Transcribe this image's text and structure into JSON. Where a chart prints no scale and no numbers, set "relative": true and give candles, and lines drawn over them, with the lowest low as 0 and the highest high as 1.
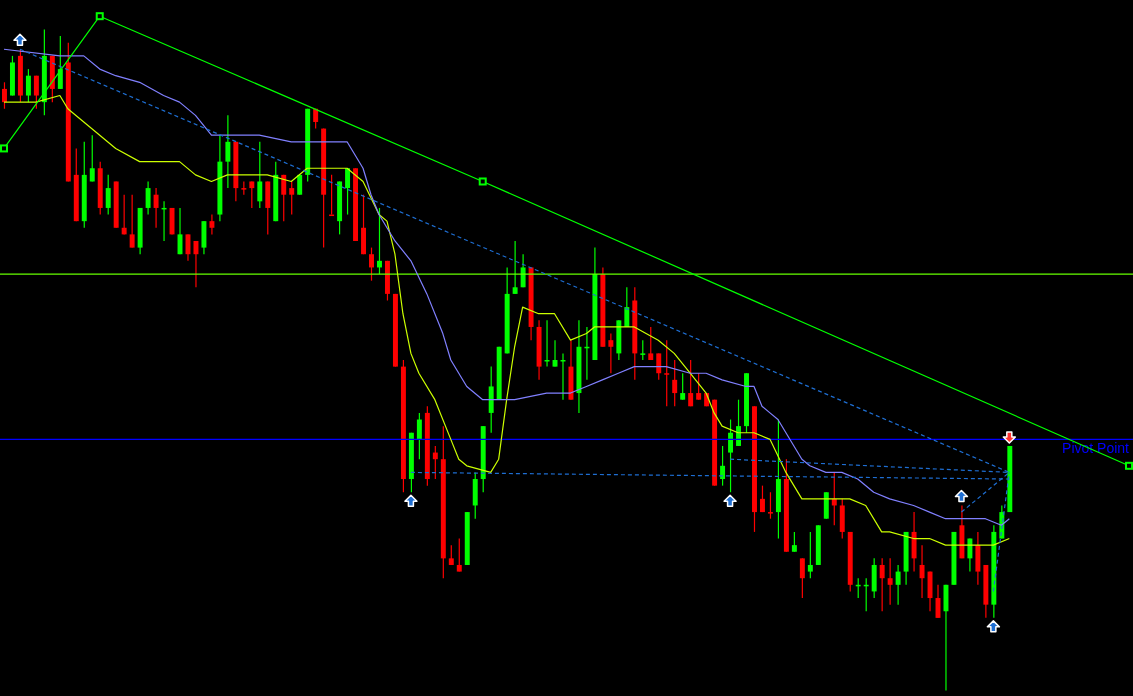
{
  "chart_data": {
    "type": "candlestick",
    "relative": true,
    "categories": [
      null,
      null,
      null,
      null,
      null,
      null,
      null,
      null,
      null,
      null,
      null,
      null,
      null,
      null,
      null,
      null,
      null,
      null,
      null,
      null,
      null,
      null,
      null,
      null,
      null,
      null,
      null,
      null,
      null,
      null,
      null,
      null,
      null,
      null,
      null,
      null,
      null,
      null,
      null,
      null,
      null,
      null,
      null,
      null,
      null,
      null,
      null,
      null,
      null,
      null,
      null,
      null,
      null,
      null,
      null,
      null,
      null,
      null,
      null,
      null,
      null,
      null,
      null,
      null,
      null,
      null,
      null,
      null,
      null,
      null,
      null,
      null,
      null,
      null,
      null,
      null,
      null,
      null,
      null,
      null,
      null,
      null,
      null,
      null,
      null,
      null,
      null,
      null,
      null,
      null,
      null,
      null,
      null,
      null,
      null,
      null,
      null,
      null,
      null,
      null,
      null,
      null,
      null,
      null,
      null,
      null,
      null,
      null,
      null,
      null,
      null,
      null,
      null,
      null,
      null,
      null,
      null,
      null,
      null,
      null,
      null,
      null,
      null,
      null,
      null,
      null,
      null,
      null,
      null,
      null,
      null,
      null,
      null,
      null,
      null,
      null,
      null,
      null,
      null,
      null,
      null,
      null
    ],
    "ohlc": [
      [
        0.91,
        0.92,
        0.88,
        0.89
      ],
      [
        0.9,
        0.96,
        0.9,
        0.95
      ],
      [
        0.96,
        0.97,
        0.89,
        0.9
      ],
      [
        0.9,
        0.94,
        0.89,
        0.93
      ],
      [
        0.93,
        0.93,
        0.88,
        0.9
      ],
      [
        0.89,
        1.0,
        0.87,
        0.96
      ],
      [
        0.96,
        0.96,
        0.89,
        0.91
      ],
      [
        0.91,
        0.99,
        0.91,
        0.94
      ],
      [
        0.95,
        0.98,
        0.77,
        0.77
      ],
      [
        0.78,
        0.82,
        0.71,
        0.71
      ],
      [
        0.71,
        0.83,
        0.7,
        0.78
      ],
      [
        0.77,
        0.84,
        0.77,
        0.79
      ],
      [
        0.79,
        0.8,
        0.72,
        0.73
      ],
      [
        0.73,
        0.78,
        0.72,
        0.76
      ],
      [
        0.77,
        0.77,
        0.7,
        0.7
      ],
      [
        0.7,
        0.75,
        0.69,
        0.69
      ],
      [
        0.69,
        0.75,
        0.67,
        0.67
      ],
      [
        0.67,
        0.73,
        0.66,
        0.73
      ],
      [
        0.73,
        0.77,
        0.72,
        0.76
      ],
      [
        0.75,
        0.76,
        0.7,
        0.73
      ],
      [
        0.73,
        0.74,
        0.68,
        0.73
      ],
      [
        0.73,
        0.73,
        0.69,
        0.69
      ],
      [
        0.66,
        0.73,
        0.66,
        0.69
      ],
      [
        0.69,
        0.69,
        0.65,
        0.66
      ],
      [
        0.68,
        0.68,
        0.61,
        0.66
      ],
      [
        0.67,
        0.71,
        0.66,
        0.71
      ],
      [
        0.71,
        0.72,
        0.69,
        0.7
      ],
      [
        0.72,
        0.84,
        0.71,
        0.8
      ],
      [
        0.8,
        0.87,
        0.76,
        0.83
      ],
      [
        0.83,
        0.83,
        0.74,
        0.76
      ],
      [
        0.76,
        0.77,
        0.75,
        0.76
      ],
      [
        0.77,
        0.77,
        0.73,
        0.76
      ],
      [
        0.74,
        0.83,
        0.73,
        0.77
      ],
      [
        0.77,
        0.77,
        0.69,
        0.73
      ],
      [
        0.71,
        0.8,
        0.71,
        0.78
      ],
      [
        0.78,
        0.78,
        0.71,
        0.75
      ],
      [
        0.76,
        0.77,
        0.72,
        0.75
      ],
      [
        0.75,
        0.78,
        0.75,
        0.78
      ],
      [
        0.78,
        0.88,
        0.77,
        0.88
      ],
      [
        0.88,
        0.88,
        0.85,
        0.86
      ],
      [
        0.85,
        0.85,
        0.67,
        0.75
      ],
      [
        0.72,
        0.78,
        0.72,
        0.72
      ],
      [
        0.71,
        0.77,
        0.69,
        0.77
      ],
      [
        0.76,
        0.79,
        0.72,
        0.79
      ],
      [
        0.79,
        0.79,
        0.68,
        0.68
      ],
      [
        0.7,
        0.75,
        0.66,
        0.66
      ],
      [
        0.66,
        0.67,
        0.62,
        0.64
      ],
      [
        0.64,
        0.73,
        0.63,
        0.65
      ],
      [
        0.65,
        0.65,
        0.59,
        0.6
      ],
      [
        0.6,
        0.6,
        0.49,
        0.49
      ],
      [
        0.49,
        0.5,
        0.3,
        0.32
      ],
      [
        0.32,
        0.39,
        0.3,
        0.39
      ],
      [
        0.38,
        0.42,
        0.35,
        0.41
      ],
      [
        0.42,
        0.43,
        0.31,
        0.32
      ],
      [
        0.36,
        0.37,
        0.32,
        0.35
      ],
      [
        0.35,
        0.4,
        0.17,
        0.2
      ],
      [
        0.2,
        0.22,
        0.19,
        0.19
      ],
      [
        0.19,
        0.23,
        0.18,
        0.18
      ],
      [
        0.19,
        0.27,
        0.19,
        0.27
      ],
      [
        0.28,
        0.33,
        0.26,
        0.32
      ],
      [
        0.32,
        0.4,
        0.3,
        0.4
      ],
      [
        0.42,
        0.49,
        0.39,
        0.46
      ],
      [
        0.44,
        0.52,
        0.44,
        0.52
      ],
      [
        0.51,
        0.64,
        0.51,
        0.6
      ],
      [
        0.6,
        0.68,
        0.6,
        0.61
      ],
      [
        0.61,
        0.66,
        0.61,
        0.64
      ],
      [
        0.64,
        0.64,
        0.53,
        0.55
      ],
      [
        0.55,
        0.56,
        0.47,
        0.49
      ],
      [
        0.5,
        0.56,
        0.49,
        0.5
      ],
      [
        0.49,
        0.53,
        0.49,
        0.5
      ],
      [
        0.5,
        0.51,
        0.44,
        0.5
      ],
      [
        0.49,
        0.53,
        0.44,
        0.44
      ],
      [
        0.45,
        0.56,
        0.42,
        0.52
      ],
      [
        0.52,
        0.55,
        0.47,
        0.52
      ],
      [
        0.5,
        0.67,
        0.5,
        0.63
      ],
      [
        0.63,
        0.64,
        0.52,
        0.52
      ],
      [
        0.53,
        0.54,
        0.48,
        0.52
      ],
      [
        0.51,
        0.56,
        0.5,
        0.56
      ],
      [
        0.55,
        0.61,
        0.55,
        0.58
      ],
      [
        0.59,
        0.61,
        0.47,
        0.51
      ],
      [
        0.51,
        0.53,
        0.5,
        0.51
      ],
      [
        0.51,
        0.55,
        0.5,
        0.5
      ],
      [
        0.51,
        0.51,
        0.47,
        0.48
      ],
      [
        0.48,
        0.53,
        0.43,
        0.48
      ],
      [
        0.47,
        0.5,
        0.43,
        0.45
      ],
      [
        0.44,
        0.48,
        0.44,
        0.45
      ],
      [
        0.45,
        0.5,
        0.43,
        0.43
      ],
      [
        0.45,
        0.48,
        0.44,
        0.44
      ],
      [
        0.45,
        0.45,
        0.43,
        0.43
      ],
      [
        0.44,
        0.44,
        0.31,
        0.31
      ],
      [
        0.32,
        0.37,
        0.31,
        0.34
      ],
      [
        0.36,
        0.41,
        0.3,
        0.39
      ],
      [
        0.37,
        0.44,
        0.37,
        0.4
      ],
      [
        0.4,
        0.48,
        0.39,
        0.48
      ],
      [
        0.43,
        0.43,
        0.24,
        0.27
      ],
      [
        0.29,
        0.31,
        0.27,
        0.27
      ],
      [
        0.27,
        0.3,
        0.26,
        0.27
      ],
      [
        0.27,
        0.41,
        0.23,
        0.32
      ],
      [
        0.32,
        0.35,
        0.21,
        0.21
      ],
      [
        0.21,
        0.24,
        0.21,
        0.22
      ],
      [
        0.2,
        0.2,
        0.14,
        0.17
      ],
      [
        0.18,
        0.24,
        0.17,
        0.19
      ],
      [
        0.19,
        0.25,
        0.19,
        0.25
      ],
      [
        0.26,
        0.3,
        0.26,
        0.3
      ],
      [
        0.29,
        0.33,
        0.25,
        0.28
      ],
      [
        0.28,
        0.29,
        0.23,
        0.24
      ],
      [
        0.24,
        0.24,
        0.15,
        0.16
      ],
      [
        0.16,
        0.17,
        0.14,
        0.16
      ],
      [
        0.16,
        0.17,
        0.12,
        0.16
      ],
      [
        0.15,
        0.2,
        0.14,
        0.19
      ],
      [
        0.19,
        0.2,
        0.12,
        0.17
      ],
      [
        0.17,
        0.2,
        0.13,
        0.16
      ],
      [
        0.16,
        0.19,
        0.13,
        0.18
      ],
      [
        0.18,
        0.24,
        0.16,
        0.24
      ],
      [
        0.24,
        0.27,
        0.18,
        0.2
      ],
      [
        0.19,
        0.22,
        0.14,
        0.17
      ],
      [
        0.18,
        0.18,
        0.12,
        0.14
      ],
      [
        0.14,
        0.16,
        0.11,
        0.11
      ],
      [
        0.12,
        0.16,
        0.0,
        0.16
      ],
      [
        0.16,
        0.24,
        0.16,
        0.24
      ],
      [
        0.25,
        0.28,
        0.2,
        0.2
      ],
      [
        0.2,
        0.23,
        0.18,
        0.23
      ],
      [
        0.22,
        0.24,
        0.16,
        0.18
      ],
      [
        0.19,
        0.19,
        0.11,
        0.13
      ],
      [
        0.13,
        0.25,
        0.11,
        0.24
      ],
      [
        0.23,
        0.28,
        0.23,
        0.27
      ],
      [
        0.27,
        0.37,
        0.27,
        0.37
      ],
      null,
      null,
      null,
      null,
      null,
      null,
      null,
      null,
      null,
      null,
      null,
      null,
      null,
      null,
      null
    ],
    "colors": [
      "#ff0000",
      "#00ff00",
      "#ff0000",
      "#00ff00",
      "#ff0000",
      "#00ff00",
      "#ff0000",
      "#00ff00",
      "#ff0000",
      "#ff0000",
      "#00ff00",
      "#00ff00",
      "#ff0000",
      "#00ff00",
      "#ff0000",
      "#ff0000",
      "#ff0000",
      "#00ff00",
      "#00ff00",
      "#ff0000",
      "#00ff00",
      "#ff0000",
      "#00ff00",
      "#ff0000",
      "#ff0000",
      "#00ff00",
      "#ff0000",
      "#00ff00",
      "#00ff00",
      "#ff0000",
      "#ff0000",
      "#ff0000",
      "#00ff00",
      "#ff0000",
      "#00ff00",
      "#ff0000",
      "#ff0000",
      "#00ff00",
      "#00ff00",
      "#ff0000",
      "#ff0000",
      "#ff0000",
      "#00ff00",
      "#00ff00",
      "#ff0000",
      "#ff0000",
      "#ff0000",
      "#00ff00",
      "#ff0000",
      "#ff0000",
      "#ff0000",
      "#00ff00",
      "#00ff00",
      "#ff0000",
      "#ff0000",
      "#ff0000",
      "#ff0000",
      "#ff0000",
      "#00ff00",
      "#00ff00",
      "#00ff00",
      "#00ff00",
      "#00ff00",
      "#00ff00",
      "#00ff00",
      "#00ff00",
      "#ff0000",
      "#ff0000",
      "#00ff00",
      "#00ff00",
      "#00ff00",
      "#ff0000",
      "#00ff00",
      "#00ff00",
      "#00ff00",
      "#ff0000",
      "#ff0000",
      "#00ff00",
      "#00ff00",
      "#ff0000",
      "#00ff00",
      "#ff0000",
      "#ff0000",
      "#ff0000",
      "#ff0000",
      "#00ff00",
      "#ff0000",
      "#ff0000",
      "#ff0000",
      "#ff0000",
      "#00ff00",
      "#00ff00",
      "#00ff00",
      "#00ff00",
      "#ff0000",
      "#ff0000",
      "#ff0000",
      "#00ff00",
      "#ff0000",
      "#00ff00",
      "#ff0000",
      "#00ff00",
      "#00ff00",
      "#00ff00",
      "#ff0000",
      "#ff0000",
      "#ff0000",
      "#00ff00",
      "#00ff00",
      "#00ff00",
      "#ff0000",
      "#ff0000",
      "#00ff00",
      "#00ff00",
      "#ff0000",
      "#ff0000",
      "#ff0000",
      "#ff0000",
      "#00ff00",
      "#00ff00",
      "#ff0000",
      "#00ff00",
      "#ff0000",
      "#ff0000",
      "#00ff00",
      "#00ff00",
      "#00ff00",
      null,
      null,
      null,
      null,
      null,
      null,
      null,
      null,
      null,
      null,
      null,
      null,
      null,
      null,
      null
    ],
    "series": [
      {
        "type": "line",
        "color": "#ccff00",
        "marker": "none",
        "values": [
          0.89,
          null,
          null,
          null,
          0.89,
          null,
          null,
          0.9,
          0.88,
          null,
          0.86,
          null,
          0.84,
          null,
          0.82,
          null,
          null,
          0.8,
          null,
          null,
          null,
          null,
          0.8,
          null,
          0.78,
          null,
          0.77,
          null,
          0.78,
          null,
          null,
          null,
          null,
          0.78,
          null,
          null,
          0.77,
          null,
          0.79,
          null,
          null,
          null,
          null,
          0.79,
          null,
          0.77,
          null,
          0.72,
          0.71,
          0.66,
          0.57,
          0.51,
          0.48,
          null,
          0.44,
          null,
          0.38,
          0.35,
          0.34,
          null,
          null,
          0.33,
          0.35,
          0.44,
          0.52,
          0.58,
          null,
          0.57,
          null,
          0.57,
          null,
          0.53,
          null,
          0.54,
          0.55,
          null,
          null,
          0.55,
          null,
          0.55,
          null,
          null,
          0.53,
          null,
          0.51,
          null,
          0.48,
          null,
          0.45,
          0.42,
          0.4,
          null,
          0.39,
          null,
          0.39,
          null,
          0.38,
          null,
          0.33,
          0.31,
          0.29,
          null,
          null,
          null,
          0.29,
          null,
          0.29,
          null,
          0.28,
          null,
          0.24,
          0.24,
          null,
          null,
          0.23,
          null,
          0.23,
          null,
          0.22,
          null,
          null,
          null,
          null,
          0.22,
          0.22,
          null,
          0.23,
          null,
          null,
          null,
          null,
          null,
          null,
          null,
          null,
          null,
          null,
          null,
          null,
          null,
          null,
          null
        ]
      },
      {
        "type": "line",
        "color": "#8080ff",
        "marker": "none",
        "values": [
          0.97,
          null,
          null,
          null,
          null,
          null,
          null,
          0.96,
          null,
          null,
          0.96,
          null,
          0.94,
          null,
          0.93,
          null,
          null,
          0.92,
          null,
          null,
          0.9,
          null,
          0.89,
          null,
          0.87,
          null,
          0.84,
          null,
          0.84,
          null,
          null,
          null,
          0.84,
          null,
          null,
          null,
          0.83,
          null,
          null,
          null,
          0.83,
          null,
          null,
          0.83,
          null,
          0.79,
          0.75,
          0.72,
          null,
          0.68,
          null,
          0.65,
          null,
          0.6,
          null,
          0.54,
          0.5,
          null,
          0.46,
          null,
          0.44,
          null,
          0.44,
          null,
          0.44,
          null,
          null,
          null,
          0.45,
          null,
          null,
          0.45,
          null,
          0.46,
          null,
          0.47,
          null,
          0.48,
          null,
          0.49,
          null,
          null,
          null,
          0.49,
          null,
          null,
          0.48,
          null,
          0.48,
          null,
          0.47,
          null,
          null,
          0.46,
          0.46,
          0.43,
          0.42,
          0.41,
          0.39,
          0.37,
          0.35,
          0.34,
          null,
          0.33,
          null,
          0.33,
          null,
          0.32,
          null,
          0.3,
          null,
          0.29,
          null,
          null,
          0.28,
          null,
          0.27,
          null,
          0.26,
          null,
          null,
          0.26,
          null,
          0.26,
          null,
          0.25,
          0.26,
          null,
          null,
          null,
          null,
          null,
          null,
          null,
          null,
          null,
          null,
          null,
          null,
          null,
          null,
          null
        ]
      },
      {
        "type": "line",
        "color": "#00ff00",
        "marker": "square",
        "values": [
          0.82,
          null,
          null,
          null,
          null,
          null,
          null,
          null,
          null,
          null,
          null,
          null,
          1.02,
          null,
          null,
          null,
          null,
          null,
          null,
          null,
          null,
          null,
          null,
          null,
          null,
          null,
          null,
          null,
          null,
          null,
          null,
          null,
          null,
          null,
          null,
          null,
          null,
          null,
          null,
          null,
          null,
          null,
          null,
          null,
          null,
          null,
          null,
          null,
          null,
          null,
          null,
          null,
          null,
          null,
          null,
          null,
          null,
          null,
          null,
          null,
          0.77,
          null,
          null,
          null,
          null,
          null,
          null,
          null,
          null,
          null,
          null,
          null,
          null,
          null,
          null,
          null,
          null,
          null,
          null,
          null,
          null,
          null,
          null,
          null,
          null,
          null,
          null,
          null,
          null,
          null,
          null,
          null,
          null,
          null,
          null,
          null,
          null,
          null,
          null,
          null,
          null,
          null,
          null,
          null,
          null,
          null,
          null,
          null,
          null,
          null,
          null,
          null,
          null,
          null,
          null,
          null,
          null,
          null,
          null,
          null,
          null,
          null,
          null,
          null,
          null,
          null,
          null,
          null,
          null,
          null,
          null,
          null,
          null,
          null,
          null,
          null,
          null,
          null,
          null,
          null,
          null,
          0.34
        ]
      },
      {
        "type": "line",
        "color": "#1e6ed2",
        "line_style": "dashed",
        "values": [
          null,
          null,
          0.97,
          null,
          null,
          null,
          null,
          null,
          null,
          null,
          null,
          null,
          null,
          null,
          null,
          null,
          null,
          null,
          null,
          null,
          null,
          null,
          null,
          null,
          null,
          null,
          null,
          null,
          null,
          null,
          null,
          null,
          null,
          null,
          null,
          null,
          null,
          null,
          null,
          null,
          null,
          null,
          null,
          null,
          null,
          null,
          null,
          null,
          null,
          null,
          null,
          null,
          null,
          null,
          null,
          null,
          null,
          null,
          null,
          null,
          null,
          null,
          null,
          null,
          null,
          null,
          null,
          null,
          null,
          null,
          null,
          null,
          null,
          null,
          null,
          null,
          null,
          null,
          null,
          null,
          null,
          null,
          null,
          null,
          null,
          null,
          null,
          null,
          null,
          null,
          null,
          null,
          null,
          null,
          null,
          null,
          null,
          null,
          null,
          null,
          null,
          null,
          null,
          null,
          null,
          null,
          null,
          null,
          null,
          null,
          null,
          null,
          null,
          null,
          null,
          null,
          null,
          null,
          null,
          null,
          null,
          null,
          null,
          null,
          null,
          null,
          0.33,
          null,
          null,
          null,
          null,
          null,
          null,
          null,
          null,
          null,
          null,
          null,
          null,
          null,
          null,
          null
        ]
      },
      {
        "type": "line",
        "color": "#1e6ed2",
        "line_style": "dashed",
        "values": [
          null,
          null,
          null,
          null,
          null,
          null,
          null,
          null,
          null,
          null,
          null,
          null,
          null,
          null,
          null,
          null,
          null,
          null,
          null,
          null,
          null,
          null,
          null,
          null,
          null,
          null,
          null,
          null,
          null,
          null,
          null,
          null,
          null,
          null,
          null,
          null,
          null,
          null,
          null,
          null,
          null,
          null,
          null,
          null,
          null,
          null,
          null,
          null,
          null,
          null,
          null,
          0.33,
          null,
          null,
          null,
          null,
          null,
          null,
          null,
          null,
          null,
          null,
          null,
          null,
          null,
          null,
          null,
          null,
          null,
          null,
          null,
          null,
          null,
          null,
          null,
          null,
          null,
          null,
          null,
          null,
          null,
          null,
          null,
          null,
          null,
          null,
          null,
          null,
          null,
          null,
          null,
          null,
          null,
          null,
          null,
          null,
          null,
          null,
          null,
          null,
          null,
          null,
          null,
          null,
          null,
          null,
          null,
          null,
          null,
          null,
          null,
          null,
          null,
          null,
          null,
          null,
          null,
          null,
          null,
          null,
          null,
          null,
          null,
          null,
          null,
          null,
          0.32,
          null,
          null,
          null,
          null,
          null,
          null,
          null,
          null,
          null,
          null,
          null,
          null,
          null,
          null,
          null
        ]
      },
      {
        "type": "line",
        "color": "#1e6ed2",
        "line_style": "dashed",
        "values": [
          null,
          null,
          null,
          null,
          null,
          null,
          null,
          null,
          null,
          null,
          null,
          null,
          null,
          null,
          null,
          null,
          null,
          null,
          null,
          null,
          null,
          null,
          null,
          null,
          null,
          null,
          null,
          null,
          null,
          null,
          null,
          null,
          null,
          null,
          null,
          null,
          null,
          null,
          null,
          null,
          null,
          null,
          null,
          null,
          null,
          null,
          null,
          null,
          null,
          null,
          null,
          null,
          null,
          null,
          null,
          null,
          null,
          null,
          null,
          null,
          null,
          null,
          null,
          null,
          null,
          null,
          null,
          null,
          null,
          null,
          null,
          null,
          null,
          null,
          null,
          null,
          null,
          null,
          null,
          null,
          null,
          null,
          null,
          null,
          null,
          null,
          null,
          null,
          null,
          null,
          null,
          0.35,
          null,
          null,
          null,
          null,
          null,
          null,
          null,
          null,
          null,
          null,
          null,
          null,
          null,
          null,
          null,
          null,
          null,
          null,
          null,
          null,
          null,
          null,
          null,
          null,
          null,
          null,
          null,
          null,
          null,
          null,
          null,
          null,
          null,
          null,
          0.33,
          null,
          null,
          null,
          null,
          null,
          null,
          null,
          null,
          null,
          null,
          null,
          null,
          null,
          null,
          null
        ]
      },
      {
        "type": "line",
        "color": "#1e6ed2",
        "line_style": "dashed",
        "values": [
          null,
          null,
          null,
          null,
          null,
          null,
          null,
          null,
          null,
          null,
          null,
          null,
          null,
          null,
          null,
          null,
          null,
          null,
          null,
          null,
          null,
          null,
          null,
          null,
          null,
          null,
          null,
          null,
          null,
          null,
          null,
          null,
          null,
          null,
          null,
          null,
          null,
          null,
          null,
          null,
          null,
          null,
          null,
          null,
          null,
          null,
          null,
          null,
          null,
          null,
          null,
          null,
          null,
          null,
          null,
          null,
          null,
          null,
          null,
          null,
          null,
          null,
          null,
          null,
          null,
          null,
          null,
          null,
          null,
          null,
          null,
          null,
          null,
          null,
          null,
          null,
          null,
          null,
          null,
          null,
          null,
          null,
          null,
          null,
          null,
          null,
          null,
          null,
          null,
          null,
          null,
          null,
          null,
          null,
          null,
          null,
          null,
          null,
          null,
          null,
          null,
          null,
          null,
          null,
          null,
          null,
          null,
          null,
          null,
          null,
          null,
          null,
          null,
          null,
          null,
          null,
          null,
          null,
          null,
          null,
          0.27,
          null,
          null,
          null,
          null,
          null,
          0.33,
          null,
          null,
          null,
          null,
          null,
          null,
          null,
          null,
          null,
          null,
          null,
          null,
          null,
          null,
          null
        ]
      },
      {
        "type": "line",
        "color": "#1e6ed2",
        "line_style": "dashed",
        "values": [
          null,
          null,
          null,
          null,
          null,
          null,
          null,
          null,
          null,
          null,
          null,
          null,
          null,
          null,
          null,
          null,
          null,
          null,
          null,
          null,
          null,
          null,
          null,
          null,
          null,
          null,
          null,
          null,
          null,
          null,
          null,
          null,
          null,
          null,
          null,
          null,
          null,
          null,
          null,
          null,
          null,
          null,
          null,
          null,
          null,
          null,
          null,
          null,
          null,
          null,
          null,
          null,
          null,
          null,
          null,
          null,
          null,
          null,
          null,
          null,
          null,
          null,
          null,
          null,
          null,
          null,
          null,
          null,
          null,
          null,
          null,
          null,
          null,
          null,
          null,
          null,
          null,
          null,
          null,
          null,
          null,
          null,
          null,
          null,
          null,
          null,
          null,
          null,
          null,
          null,
          null,
          null,
          null,
          null,
          null,
          null,
          null,
          null,
          null,
          null,
          null,
          null,
          null,
          null,
          null,
          null,
          null,
          null,
          null,
          null,
          null,
          null,
          null,
          null,
          null,
          null,
          null,
          null,
          null,
          null,
          null,
          null,
          null,
          null,
          0.15,
          null,
          0.33,
          null,
          null,
          null,
          null,
          null,
          null,
          null,
          null,
          null,
          null,
          null,
          null,
          null,
          null,
          null
        ]
      }
    ],
    "ref_lines": [
      {
        "axis": "y",
        "value": 0.63,
        "color": "#66ff00"
      },
      {
        "axis": "y",
        "value": 0.38,
        "label": "Pivot Point",
        "color": "#0000ff"
      }
    ]
  }
}
